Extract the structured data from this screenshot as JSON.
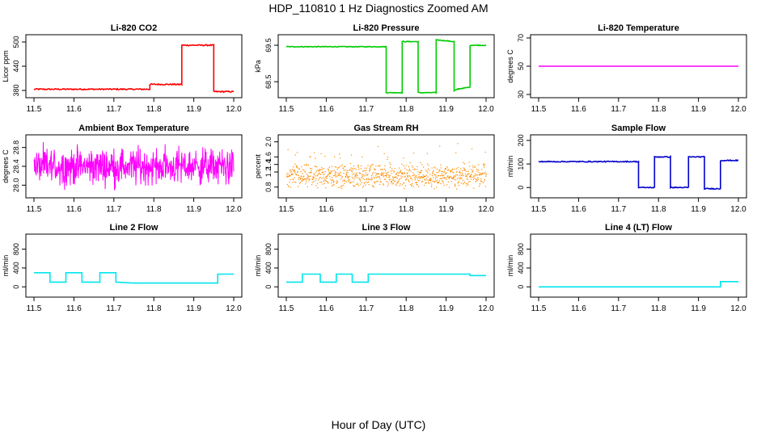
{
  "title": "HDP_110810  1 Hz Diagnostics Zoomed AM",
  "xlabel": "Hour of Day (UTC)",
  "chart_data": [
    {
      "type": "line",
      "title": "Li-820 CO2",
      "ylabel": "Licor ppm",
      "color": "#ff0000",
      "style": "line",
      "xlim": [
        11.5,
        12.0
      ],
      "ylim": [
        370,
        510
      ],
      "xticks": [
        "11.5",
        "11.6",
        "11.7",
        "11.8",
        "11.9",
        "12.0"
      ],
      "yticks": [
        {
          "v": 380,
          "label": "380"
        },
        {
          "v": 440,
          "label": "440"
        },
        {
          "v": 500,
          "label": "500"
        }
      ],
      "series_points": [
        [
          11.5,
          383
        ],
        [
          11.79,
          383
        ],
        [
          11.79,
          395
        ],
        [
          11.87,
          395
        ],
        [
          11.87,
          492
        ],
        [
          11.95,
          492
        ],
        [
          11.95,
          377
        ],
        [
          12.0,
          377
        ]
      ],
      "noise": 1.5
    },
    {
      "type": "line",
      "title": "Li-820 Pressure",
      "ylabel": "kPa",
      "color": "#00cc00",
      "style": "line",
      "xlim": [
        11.5,
        12.0
      ],
      "ylim": [
        68.15,
        69.7
      ],
      "xticks": [
        "11.5",
        "11.6",
        "11.7",
        "11.8",
        "11.9",
        "12.0"
      ],
      "yticks": [
        {
          "v": 68.5,
          "label": "68.5"
        },
        {
          "v": 69.5,
          "label": "69.5"
        }
      ],
      "series_points": [
        [
          11.5,
          69.46
        ],
        [
          11.75,
          69.46
        ],
        [
          11.75,
          68.2
        ],
        [
          11.79,
          68.2
        ],
        [
          11.79,
          69.6
        ],
        [
          11.83,
          69.6
        ],
        [
          11.83,
          68.2
        ],
        [
          11.875,
          68.2
        ],
        [
          11.875,
          69.65
        ],
        [
          11.92,
          69.6
        ],
        [
          11.92,
          68.25
        ],
        [
          11.93,
          68.3
        ],
        [
          11.96,
          68.35
        ],
        [
          11.96,
          69.5
        ],
        [
          12.0,
          69.5
        ]
      ],
      "noise": 0.01
    },
    {
      "type": "line",
      "title": "Li-820 Temperature",
      "ylabel": "degrees C",
      "color": "#ff00ff",
      "style": "line",
      "xlim": [
        11.5,
        12.0
      ],
      "ylim": [
        30,
        70
      ],
      "xticks": [
        "11.5",
        "11.6",
        "11.7",
        "11.8",
        "11.9",
        "12.0"
      ],
      "yticks": [
        {
          "v": 30,
          "label": "30"
        },
        {
          "v": 50,
          "label": "50"
        },
        {
          "v": 70,
          "label": "70"
        }
      ],
      "series_points": [
        [
          11.5,
          50
        ],
        [
          12.0,
          50
        ]
      ],
      "noise": 0
    },
    {
      "type": "line",
      "title": "Ambient Box Temperature",
      "ylabel": "degrees C",
      "color": "#ff00ff",
      "style": "noise",
      "xlim": [
        11.5,
        12.0
      ],
      "ylim": [
        27.8,
        29.0
      ],
      "xticks": [
        "11.5",
        "11.6",
        "11.7",
        "11.8",
        "11.9",
        "12.0"
      ],
      "yticks": [
        {
          "v": 28.0,
          "label": "28.0"
        },
        {
          "v": 28.4,
          "label": "28.4"
        },
        {
          "v": 28.8,
          "label": "28.8"
        }
      ],
      "center": 28.4,
      "spread": 0.35
    },
    {
      "type": "scatter",
      "title": "Gas Stream RH",
      "ylabel": "percent",
      "color": "#ff8c00",
      "style": "dots",
      "xlim": [
        11.5,
        12.0
      ],
      "ylim": [
        0.6,
        2.1
      ],
      "xticks": [
        "11.5",
        "11.6",
        "11.7",
        "11.8",
        "11.9",
        "12.0"
      ],
      "yticks": [
        {
          "v": 0.8,
          "label": "0.8"
        },
        {
          "v": 1.2,
          "label": "1.2"
        },
        {
          "v": 1.4,
          "label": "1.4"
        },
        {
          "v": 1.6,
          "label": "1.6"
        },
        {
          "v": 2.0,
          "label": "2.0"
        }
      ],
      "center": 1.1,
      "spread": 0.35
    },
    {
      "type": "line",
      "title": "Sample Flow",
      "ylabel": "ml/min",
      "color": "#0000cc",
      "style": "line",
      "xlim": [
        11.5,
        12.0
      ],
      "ylim": [
        -30,
        210
      ],
      "xticks": [
        "11.5",
        "11.6",
        "11.7",
        "11.8",
        "11.9",
        "12.0"
      ],
      "yticks": [
        {
          "v": 0,
          "label": "0"
        },
        {
          "v": 100,
          "label": "100"
        },
        {
          "v": 200,
          "label": "200"
        }
      ],
      "series_points": [
        [
          11.5,
          110
        ],
        [
          11.75,
          110
        ],
        [
          11.75,
          0
        ],
        [
          11.79,
          0
        ],
        [
          11.79,
          130
        ],
        [
          11.83,
          130
        ],
        [
          11.83,
          0
        ],
        [
          11.875,
          0
        ],
        [
          11.875,
          130
        ],
        [
          11.915,
          130
        ],
        [
          11.915,
          -5
        ],
        [
          11.955,
          -5
        ],
        [
          11.955,
          115
        ],
        [
          12.0,
          115
        ]
      ],
      "noise": 2
    },
    {
      "type": "line",
      "title": "Line 2 Flow",
      "ylabel": "ml/min",
      "color": "#00e5ee",
      "style": "line",
      "xlim": [
        11.5,
        12.0
      ],
      "ylim": [
        -150,
        1050
      ],
      "xticks": [
        "11.5",
        "11.6",
        "11.7",
        "11.8",
        "11.9",
        "12.0"
      ],
      "yticks": [
        {
          "v": 0,
          "label": "0"
        },
        {
          "v": 400,
          "label": "400"
        },
        {
          "v": 800,
          "label": "800"
        }
      ],
      "series_points": [
        [
          11.5,
          300
        ],
        [
          11.54,
          300
        ],
        [
          11.54,
          100
        ],
        [
          11.58,
          100
        ],
        [
          11.58,
          300
        ],
        [
          11.62,
          300
        ],
        [
          11.62,
          100
        ],
        [
          11.665,
          100
        ],
        [
          11.665,
          300
        ],
        [
          11.705,
          300
        ],
        [
          11.705,
          100
        ],
        [
          11.75,
          80
        ],
        [
          11.96,
          80
        ],
        [
          11.96,
          270
        ],
        [
          12.0,
          270
        ]
      ],
      "noise": 0
    },
    {
      "type": "line",
      "title": "Line 3 Flow",
      "ylabel": "ml/min",
      "color": "#00e5ee",
      "style": "line",
      "xlim": [
        11.5,
        12.0
      ],
      "ylim": [
        -150,
        1050
      ],
      "xticks": [
        "11.5",
        "11.6",
        "11.7",
        "11.8",
        "11.9",
        "12.0"
      ],
      "yticks": [
        {
          "v": 0,
          "label": "0"
        },
        {
          "v": 400,
          "label": "400"
        },
        {
          "v": 800,
          "label": "800"
        }
      ],
      "series_points": [
        [
          11.5,
          100
        ],
        [
          11.54,
          100
        ],
        [
          11.54,
          270
        ],
        [
          11.585,
          270
        ],
        [
          11.585,
          100
        ],
        [
          11.625,
          100
        ],
        [
          11.625,
          270
        ],
        [
          11.665,
          270
        ],
        [
          11.665,
          100
        ],
        [
          11.705,
          100
        ],
        [
          11.705,
          270
        ],
        [
          11.96,
          270
        ],
        [
          11.96,
          240
        ],
        [
          12.0,
          240
        ]
      ],
      "noise": 0
    },
    {
      "type": "line",
      "title": "Line 4 (LT) Flow",
      "ylabel": "ml/min",
      "color": "#00e5ee",
      "style": "line",
      "xlim": [
        11.5,
        12.0
      ],
      "ylim": [
        -150,
        1050
      ],
      "xticks": [
        "11.5",
        "11.6",
        "11.7",
        "11.8",
        "11.9",
        "12.0"
      ],
      "yticks": [
        {
          "v": 0,
          "label": "0"
        },
        {
          "v": 400,
          "label": "400"
        },
        {
          "v": 800,
          "label": "800"
        }
      ],
      "series_points": [
        [
          11.5,
          0
        ],
        [
          11.955,
          0
        ],
        [
          11.955,
          110
        ],
        [
          12.0,
          110
        ]
      ],
      "noise": 0
    }
  ]
}
